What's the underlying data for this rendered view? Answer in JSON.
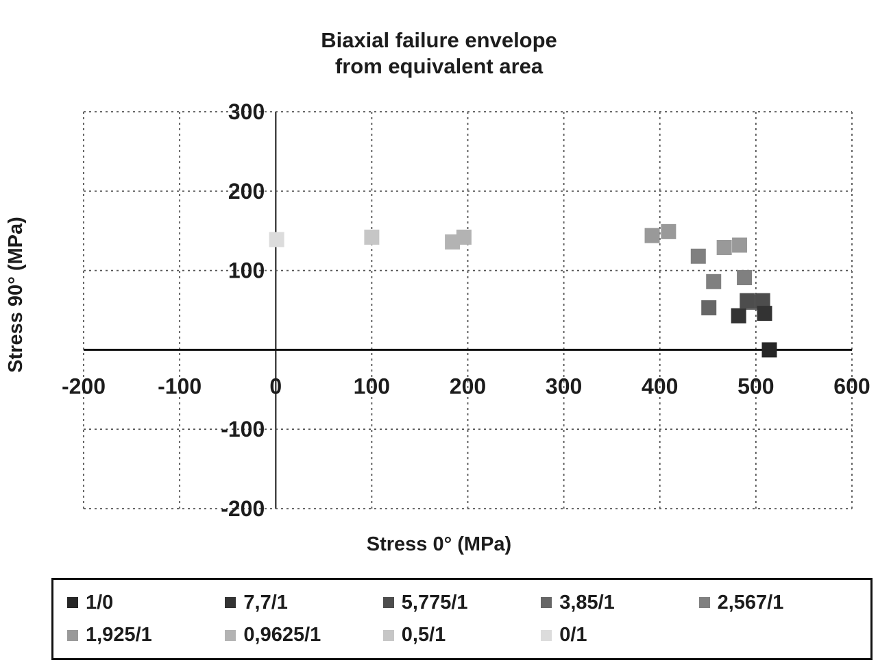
{
  "page": {
    "background": "#ffffff",
    "text_color": "#1c1c1c"
  },
  "chart_data": {
    "type": "scatter",
    "title": "Biaxial failure envelope from equivalent area",
    "title_lines": [
      "Biaxial failure envelope",
      "from equivalent area"
    ],
    "xlabel": "Stress  0° (MPa)",
    "ylabel": "Stress  90° (MPa)",
    "xlim": [
      -200,
      600
    ],
    "ylim": [
      -200,
      300
    ],
    "grid": true,
    "grid_style": "dashed",
    "grid_x": [
      -200,
      -100,
      0,
      100,
      200,
      300,
      400,
      500,
      600
    ],
    "grid_y": [
      -200,
      -100,
      0,
      100,
      200,
      300
    ],
    "xticks": [
      -200,
      -100,
      0,
      100,
      200,
      300,
      400,
      500,
      600
    ],
    "yticks": [
      300,
      200,
      100,
      -100,
      -200
    ],
    "legend_position": "bottom",
    "marker": "square",
    "series": [
      {
        "name": "1/0",
        "color": "#262626",
        "points": [
          [
            514,
            0
          ]
        ]
      },
      {
        "name": "7,7/1",
        "color": "#333333",
        "points": [
          [
            482,
            43
          ],
          [
            509,
            46
          ]
        ]
      },
      {
        "name": "5,775/1",
        "color": "#4d4d4d",
        "points": [
          [
            491,
            62
          ],
          [
            507,
            62
          ]
        ]
      },
      {
        "name": "3,85/1",
        "color": "#666666",
        "points": [
          [
            451,
            53
          ],
          [
            497,
            60
          ]
        ]
      },
      {
        "name": "2,567/1",
        "color": "#808080",
        "points": [
          [
            440,
            118
          ],
          [
            456,
            86
          ],
          [
            488,
            91
          ]
        ]
      },
      {
        "name": "1,925/1",
        "color": "#999999",
        "points": [
          [
            392,
            144
          ],
          [
            409,
            149
          ],
          [
            467,
            129
          ],
          [
            483,
            132
          ]
        ]
      },
      {
        "name": "0,9625/1",
        "color": "#b3b3b3",
        "points": [
          [
            184,
            136
          ],
          [
            196,
            142
          ]
        ]
      },
      {
        "name": "0,5/1",
        "color": "#c6c6c6",
        "points": [
          [
            100,
            142
          ]
        ]
      },
      {
        "name": "0/1",
        "color": "#dcdcdc",
        "points": [
          [
            1,
            139
          ]
        ]
      }
    ]
  }
}
